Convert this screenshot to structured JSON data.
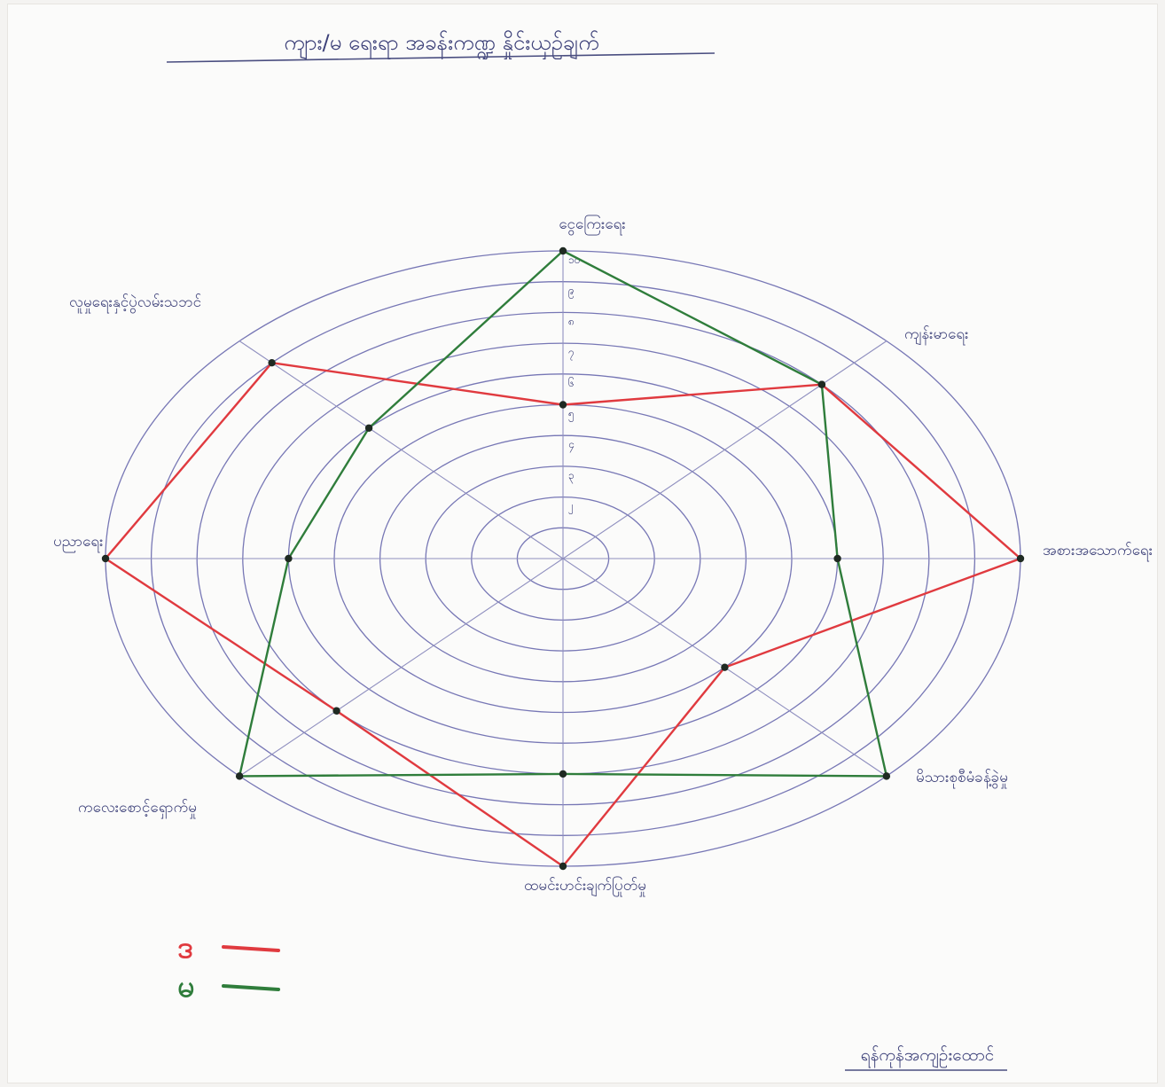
{
  "chart_data": {
    "type": "radar",
    "title": "ကျား/မ ရေးရာ အခန်းကဏ္ဍ နှိုင်းယှဉ်ချက်",
    "footer": "ရန်ကုန်အကျဉ်းထောင်",
    "scale": {
      "min": 0,
      "max": 10,
      "rings": 10
    },
    "tick_labels": [
      "၂",
      "၃",
      "၄",
      "၅",
      "၆",
      "၇",
      "၈",
      "၉",
      "၁၀"
    ],
    "axes": [
      "ငွေကြေးရေး",
      "ကျန်းမာရေး",
      "အစားအသောက်ရေး",
      "မိသားစုစီမံခန့်ခွဲမှု",
      "ထမင်းဟင်းချက်ပြုတ်မှု",
      "ကလေးစောင့်ရှောက်မှု",
      "ပညာရေး",
      "လူမှုရေးနှင့်ပွဲလမ်းသဘင်"
    ],
    "series": [
      {
        "name": "ဒ",
        "color": "#e03a3f",
        "values": [
          5,
          8,
          10,
          5,
          10,
          7,
          10,
          9
        ]
      },
      {
        "name": "မ",
        "color": "#2f7d3b",
        "values": [
          10,
          8,
          6,
          10,
          7,
          10,
          6,
          6
        ]
      }
    ],
    "grid": true,
    "legend_position": "bottom-left"
  },
  "colors": {
    "ring": "#7777b5",
    "spoke": "#8f8fbf",
    "ink": "#3b3f78",
    "point": "#1f2a22"
  }
}
